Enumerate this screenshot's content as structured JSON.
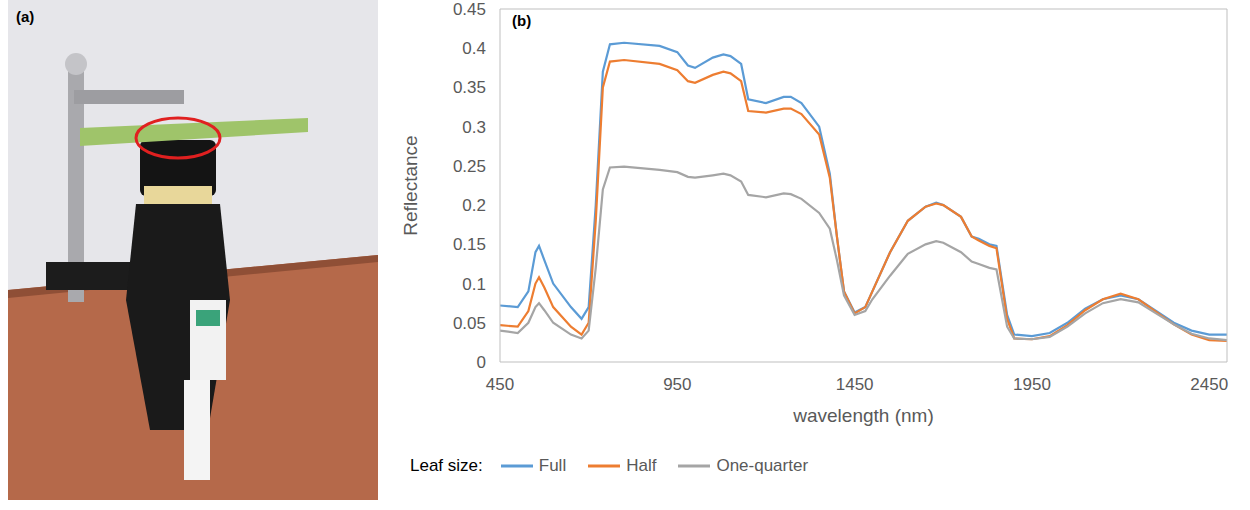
{
  "photo_panel": {
    "label": "(a)"
  },
  "chart_data": {
    "type": "line",
    "label": "(b)",
    "x_label": "wavelength  (nm)",
    "y_label": "Reflectance",
    "legend_title": "Leaf size:",
    "legend": "bottom",
    "grid": false,
    "xlim": [
      450,
      2500
    ],
    "xticks": [
      450,
      950,
      1450,
      1950,
      2450
    ],
    "ylim": [
      0,
      0.45
    ],
    "yticks": [
      0,
      0.05,
      0.1,
      0.15,
      0.2,
      0.25,
      0.3,
      0.35,
      0.4,
      0.45
    ],
    "x": [
      450,
      500,
      530,
      550,
      560,
      575,
      600,
      650,
      680,
      700,
      720,
      740,
      760,
      800,
      900,
      950,
      980,
      1000,
      1050,
      1080,
      1100,
      1130,
      1150,
      1200,
      1250,
      1270,
      1300,
      1350,
      1380,
      1400,
      1420,
      1450,
      1480,
      1500,
      1550,
      1600,
      1650,
      1680,
      1700,
      1750,
      1780,
      1800,
      1830,
      1850,
      1880,
      1900,
      1950,
      2000,
      2050,
      2100,
      2150,
      2200,
      2250,
      2300,
      2350,
      2400,
      2450,
      2500
    ],
    "series": [
      {
        "name": "Full",
        "color": "#5b9bd5",
        "values": [
          0.072,
          0.07,
          0.09,
          0.14,
          0.148,
          0.13,
          0.1,
          0.07,
          0.055,
          0.07,
          0.2,
          0.37,
          0.405,
          0.407,
          0.403,
          0.395,
          0.378,
          0.375,
          0.388,
          0.392,
          0.39,
          0.38,
          0.335,
          0.33,
          0.338,
          0.338,
          0.33,
          0.3,
          0.24,
          0.16,
          0.09,
          0.063,
          0.07,
          0.09,
          0.14,
          0.18,
          0.198,
          0.203,
          0.2,
          0.185,
          0.16,
          0.157,
          0.15,
          0.148,
          0.06,
          0.035,
          0.033,
          0.037,
          0.05,
          0.068,
          0.08,
          0.085,
          0.08,
          0.065,
          0.05,
          0.04,
          0.035,
          0.035
        ]
      },
      {
        "name": "Half",
        "color": "#ed7d31",
        "values": [
          0.047,
          0.045,
          0.065,
          0.1,
          0.108,
          0.095,
          0.07,
          0.045,
          0.035,
          0.05,
          0.18,
          0.35,
          0.383,
          0.385,
          0.38,
          0.372,
          0.358,
          0.356,
          0.366,
          0.37,
          0.368,
          0.358,
          0.32,
          0.318,
          0.323,
          0.323,
          0.316,
          0.29,
          0.235,
          0.16,
          0.09,
          0.062,
          0.07,
          0.09,
          0.14,
          0.18,
          0.198,
          0.202,
          0.2,
          0.185,
          0.16,
          0.155,
          0.148,
          0.145,
          0.055,
          0.03,
          0.029,
          0.033,
          0.047,
          0.066,
          0.08,
          0.087,
          0.08,
          0.064,
          0.048,
          0.035,
          0.028,
          0.027
        ]
      },
      {
        "name": "One-quarter",
        "color": "#a5a5a5",
        "values": [
          0.04,
          0.037,
          0.05,
          0.07,
          0.075,
          0.066,
          0.05,
          0.035,
          0.03,
          0.04,
          0.12,
          0.22,
          0.248,
          0.249,
          0.245,
          0.242,
          0.236,
          0.235,
          0.238,
          0.24,
          0.238,
          0.23,
          0.213,
          0.21,
          0.215,
          0.214,
          0.208,
          0.19,
          0.17,
          0.13,
          0.085,
          0.06,
          0.065,
          0.08,
          0.11,
          0.138,
          0.15,
          0.154,
          0.152,
          0.14,
          0.128,
          0.125,
          0.12,
          0.118,
          0.045,
          0.03,
          0.029,
          0.032,
          0.045,
          0.062,
          0.075,
          0.08,
          0.076,
          0.062,
          0.048,
          0.036,
          0.03,
          0.028
        ]
      }
    ]
  }
}
